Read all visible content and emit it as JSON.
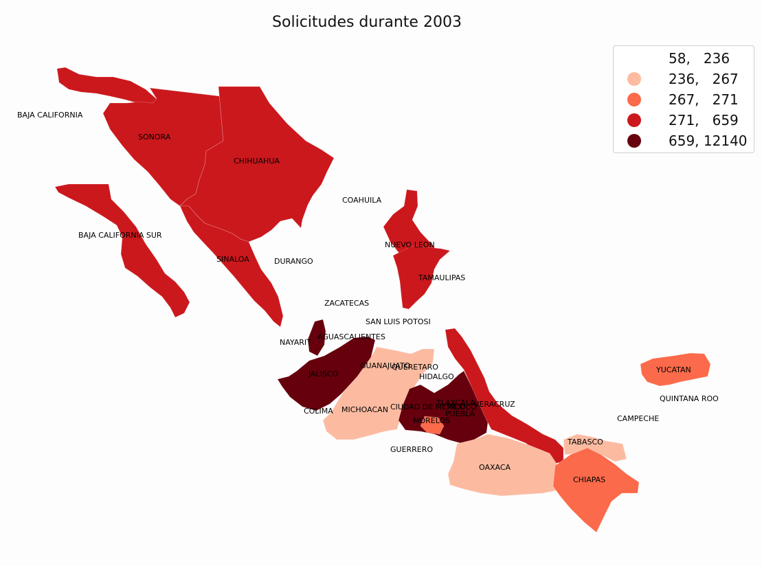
{
  "title": "Solicitudes durante 2003",
  "colors": {
    "class_1": "#ffffff",
    "class_2": "#fcbba1",
    "class_3": "#fb6a4a",
    "class_4": "#cb181d",
    "class_5": "#67000d"
  },
  "legend": {
    "items": [
      {
        "label": "58,   236",
        "color": "#ffffff"
      },
      {
        "label": "236,   267",
        "color": "#fcbba1"
      },
      {
        "label": "267,   271",
        "color": "#fb6a4a"
      },
      {
        "label": "271,   659",
        "color": "#cb181d"
      },
      {
        "label": "659, 12140",
        "color": "#67000d"
      }
    ]
  },
  "states": [
    {
      "name": "BAJA CALIFORNIA",
      "class": 4
    },
    {
      "name": "SONORA",
      "class": 4
    },
    {
      "name": "CHIHUAHUA",
      "class": 4
    },
    {
      "name": "COAHUILA",
      "class": 1
    },
    {
      "name": "BAJA CALIFORNIA SUR",
      "class": 4
    },
    {
      "name": "NUEVO LEON",
      "class": 4
    },
    {
      "name": "SINALOA",
      "class": 4
    },
    {
      "name": "DURANGO",
      "class": 1
    },
    {
      "name": "TAMAULIPAS",
      "class": 4
    },
    {
      "name": "ZACATECAS",
      "class": 1
    },
    {
      "name": "SAN LUIS POTOSI",
      "class": 1
    },
    {
      "name": "NAYARIT",
      "class": 5
    },
    {
      "name": "AGUASCALIENTES",
      "class": 1
    },
    {
      "name": "GUANAJUATO",
      "class": 2
    },
    {
      "name": "QUERETARO",
      "class": 2
    },
    {
      "name": "JALISCO",
      "class": 5
    },
    {
      "name": "HIDALGO",
      "class": 1
    },
    {
      "name": "TLAXCALA",
      "class": 5
    },
    {
      "name": "VERACRUZ",
      "class": 4
    },
    {
      "name": "COLIMA",
      "class": 5
    },
    {
      "name": "MICHOACAN",
      "class": 2
    },
    {
      "name": "CIUDAD DE MEXICO",
      "class": 5
    },
    {
      "name": "MEXICO",
      "class": 5
    },
    {
      "name": "PUEBLA",
      "class": 5
    },
    {
      "name": "MORELOS",
      "class": 3
    },
    {
      "name": "GUERRERO",
      "class": 2
    },
    {
      "name": "YUCATAN",
      "class": 3
    },
    {
      "name": "QUINTANA ROO",
      "class": 1
    },
    {
      "name": "CAMPECHE",
      "class": 1
    },
    {
      "name": "TABASCO",
      "class": 2
    },
    {
      "name": "OAXACA",
      "class": 2
    },
    {
      "name": "CHIAPAS",
      "class": 3
    }
  ]
}
